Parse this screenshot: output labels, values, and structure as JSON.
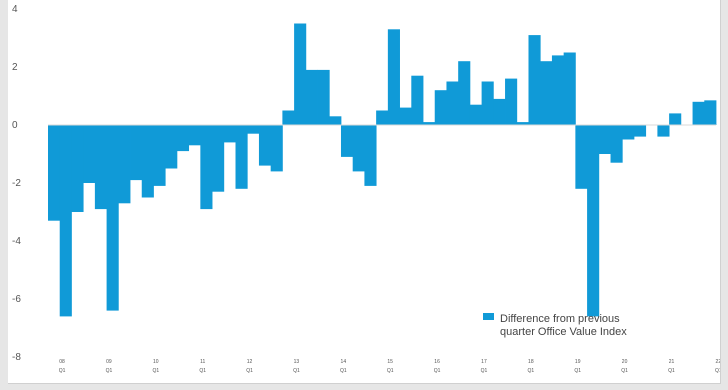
{
  "chart_data": {
    "type": "bar",
    "color": "#109ad7",
    "ylim": [
      -8,
      4
    ],
    "yticks": [
      4,
      2,
      0,
      -2,
      -4,
      -6,
      -8
    ],
    "ytick_labels": [
      "4",
      "2",
      "0",
      "-2",
      "-4",
      "-6",
      "-8"
    ],
    "xtick_labels": [
      {
        "index": 0,
        "top": "08",
        "bottom": "Q1"
      },
      {
        "index": 4,
        "top": "09",
        "bottom": "Q1"
      },
      {
        "index": 8,
        "top": "10",
        "bottom": "Q1"
      },
      {
        "index": 12,
        "top": "11",
        "bottom": "Q1"
      },
      {
        "index": 16,
        "top": "12",
        "bottom": "Q1"
      },
      {
        "index": 20,
        "top": "13",
        "bottom": "Q1"
      },
      {
        "index": 24,
        "top": "14",
        "bottom": "Q1"
      },
      {
        "index": 28,
        "top": "15",
        "bottom": "Q1"
      },
      {
        "index": 32,
        "top": "16",
        "bottom": "Q1"
      },
      {
        "index": 36,
        "top": "17",
        "bottom": "Q1"
      },
      {
        "index": 40,
        "top": "18",
        "bottom": "Q1"
      },
      {
        "index": 44,
        "top": "19",
        "bottom": "Q1"
      },
      {
        "index": 48,
        "top": "20",
        "bottom": "Q1"
      },
      {
        "index": 52,
        "top": "21",
        "bottom": "Q1"
      },
      {
        "index": 56,
        "top": "22",
        "bottom": "Q1"
      }
    ],
    "values": [
      -3.3,
      -6.6,
      -3.0,
      -2.0,
      -2.9,
      -6.4,
      -2.7,
      -1.9,
      -2.5,
      -2.1,
      -1.5,
      -0.9,
      -0.7,
      -2.9,
      -2.3,
      -0.6,
      -2.2,
      -0.3,
      -1.4,
      -1.6,
      0.5,
      3.5,
      1.9,
      1.9,
      0.3,
      -1.1,
      -1.6,
      -2.1,
      0.5,
      3.3,
      0.6,
      1.7,
      0.1,
      1.2,
      1.5,
      2.2,
      0.7,
      1.5,
      0.9,
      1.6,
      0.1,
      3.1,
      2.2,
      2.4,
      2.5,
      -2.2,
      -6.6,
      -1.0,
      -1.3,
      -0.5,
      -0.4,
      0.0,
      -0.4,
      0.4,
      0.0,
      0.8,
      0.85
    ],
    "legend": {
      "line1": "Difference from previous",
      "line2": "quarter   Office Value Index",
      "position": "bottom-right"
    }
  }
}
